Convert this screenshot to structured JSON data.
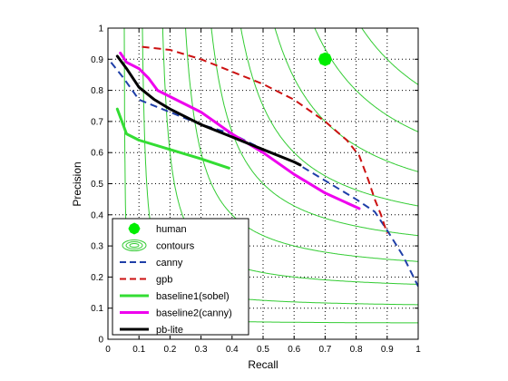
{
  "chart_data": {
    "type": "line",
    "title": "",
    "xlabel": "Recall",
    "ylabel": "Precision",
    "xlim": [
      0,
      1
    ],
    "ylim": [
      0,
      1
    ],
    "xticks": [
      "0",
      "0.1",
      "0.2",
      "0.3",
      "0.4",
      "0.5",
      "0.6",
      "0.7",
      "0.8",
      "0.9",
      "1"
    ],
    "yticks": [
      "0",
      "0.1",
      "0.2",
      "0.3",
      "0.4",
      "0.5",
      "0.6",
      "0.7",
      "0.8",
      "0.9",
      "1"
    ],
    "grid": true,
    "legend_position": "lower-left",
    "legend": [
      {
        "label": "human",
        "style": "marker",
        "color": "#00ee00"
      },
      {
        "label": "contours",
        "style": "contour",
        "color": "#33cc33"
      },
      {
        "label": "canny",
        "style": "dashed",
        "color": "#1f3fa8"
      },
      {
        "label": "gpb",
        "style": "dashed",
        "color": "#cc1111"
      },
      {
        "label": "baseline1(sobel)",
        "style": "solid",
        "color": "#33dd33"
      },
      {
        "label": "baseline2(canny)",
        "style": "solid",
        "color": "#ee00ee"
      },
      {
        "label": "pb-lite",
        "style": "solid",
        "color": "#000000"
      }
    ],
    "contours": {
      "type": "F-measure isolines",
      "f_levels": [
        0.1,
        0.2,
        0.3,
        0.4,
        0.5,
        0.6,
        0.7,
        0.8,
        0.9
      ],
      "color": "#33cc33"
    },
    "human_point": {
      "x": 0.7,
      "y": 0.9,
      "color": "#00ee00"
    },
    "series": [
      {
        "name": "canny",
        "style": "dashed",
        "color": "#1f3fa8",
        "points": [
          [
            0.01,
            0.89
          ],
          [
            0.05,
            0.84
          ],
          [
            0.1,
            0.77
          ],
          [
            0.2,
            0.73
          ],
          [
            0.3,
            0.69
          ],
          [
            0.4,
            0.66
          ],
          [
            0.5,
            0.61
          ],
          [
            0.6,
            0.57
          ],
          [
            0.7,
            0.51
          ],
          [
            0.8,
            0.45
          ],
          [
            0.86,
            0.41
          ],
          [
            0.9,
            0.35
          ],
          [
            0.95,
            0.27
          ],
          [
            1.0,
            0.17
          ]
        ]
      },
      {
        "name": "gpb",
        "style": "dashed",
        "color": "#cc1111",
        "points": [
          [
            0.11,
            0.94
          ],
          [
            0.2,
            0.93
          ],
          [
            0.3,
            0.9
          ],
          [
            0.4,
            0.86
          ],
          [
            0.5,
            0.82
          ],
          [
            0.6,
            0.77
          ],
          [
            0.7,
            0.7
          ],
          [
            0.77,
            0.64
          ],
          [
            0.81,
            0.59
          ],
          [
            0.84,
            0.51
          ],
          [
            0.86,
            0.45
          ],
          [
            0.88,
            0.4
          ],
          [
            0.9,
            0.34
          ]
        ]
      },
      {
        "name": "baseline1(sobel)",
        "style": "solid",
        "color": "#33dd33",
        "points": [
          [
            0.03,
            0.74
          ],
          [
            0.06,
            0.66
          ],
          [
            0.1,
            0.64
          ],
          [
            0.2,
            0.61
          ],
          [
            0.3,
            0.58
          ],
          [
            0.39,
            0.55
          ]
        ]
      },
      {
        "name": "baseline2(canny)",
        "style": "solid",
        "color": "#ee00ee",
        "points": [
          [
            0.04,
            0.92
          ],
          [
            0.06,
            0.89
          ],
          [
            0.1,
            0.87
          ],
          [
            0.13,
            0.84
          ],
          [
            0.16,
            0.8
          ],
          [
            0.2,
            0.78
          ],
          [
            0.3,
            0.73
          ],
          [
            0.4,
            0.66
          ],
          [
            0.5,
            0.6
          ],
          [
            0.6,
            0.53
          ],
          [
            0.7,
            0.47
          ],
          [
            0.81,
            0.42
          ]
        ]
      },
      {
        "name": "pb-lite",
        "style": "solid",
        "color": "#000000",
        "points": [
          [
            0.03,
            0.91
          ],
          [
            0.06,
            0.87
          ],
          [
            0.1,
            0.81
          ],
          [
            0.15,
            0.77
          ],
          [
            0.2,
            0.74
          ],
          [
            0.3,
            0.69
          ],
          [
            0.4,
            0.65
          ],
          [
            0.5,
            0.61
          ],
          [
            0.6,
            0.57
          ],
          [
            0.62,
            0.56
          ]
        ]
      }
    ]
  }
}
